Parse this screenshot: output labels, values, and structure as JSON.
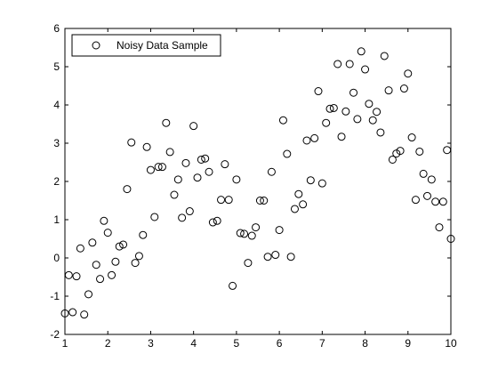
{
  "colors": {
    "background": "#ffffff",
    "axes": "#000000",
    "marker": "#000000"
  },
  "chart_data": {
    "type": "scatter",
    "title": "",
    "xlabel": "",
    "ylabel": "",
    "xlim": [
      1,
      10
    ],
    "ylim": [
      -2,
      6
    ],
    "xticks": [
      1,
      2,
      3,
      4,
      5,
      6,
      7,
      8,
      9,
      10
    ],
    "yticks": [
      -2,
      -1,
      0,
      1,
      2,
      3,
      4,
      5,
      6
    ],
    "grid": false,
    "box": true,
    "legend": {
      "placement": "top-left",
      "entries": [
        "Noisy Data Sample"
      ]
    },
    "series": [
      {
        "name": "Noisy Data Sample",
        "marker": "open-circle",
        "points": [
          [
            1.0,
            -1.45
          ],
          [
            1.09,
            -0.45
          ],
          [
            1.18,
            -1.42
          ],
          [
            1.27,
            -0.48
          ],
          [
            1.36,
            0.25
          ],
          [
            1.45,
            -1.48
          ],
          [
            1.55,
            -0.95
          ],
          [
            1.64,
            0.4
          ],
          [
            1.73,
            -0.18
          ],
          [
            1.82,
            -0.55
          ],
          [
            1.91,
            0.97
          ],
          [
            2.0,
            0.66
          ],
          [
            2.09,
            -0.45
          ],
          [
            2.18,
            -0.1
          ],
          [
            2.27,
            0.3
          ],
          [
            2.36,
            0.35
          ],
          [
            2.45,
            1.8
          ],
          [
            2.55,
            3.02
          ],
          [
            2.64,
            -0.13
          ],
          [
            2.73,
            0.05
          ],
          [
            2.82,
            0.6
          ],
          [
            2.91,
            2.9
          ],
          [
            3.0,
            2.3
          ],
          [
            3.09,
            1.07
          ],
          [
            3.18,
            2.38
          ],
          [
            3.27,
            2.38
          ],
          [
            3.36,
            3.53
          ],
          [
            3.45,
            2.77
          ],
          [
            3.55,
            1.65
          ],
          [
            3.64,
            2.05
          ],
          [
            3.73,
            1.05
          ],
          [
            3.82,
            2.48
          ],
          [
            3.91,
            1.22
          ],
          [
            4.0,
            3.45
          ],
          [
            4.09,
            2.1
          ],
          [
            4.18,
            2.57
          ],
          [
            4.27,
            2.6
          ],
          [
            4.36,
            2.25
          ],
          [
            4.45,
            0.93
          ],
          [
            4.55,
            0.97
          ],
          [
            4.64,
            1.52
          ],
          [
            4.73,
            2.45
          ],
          [
            4.82,
            1.52
          ],
          [
            4.91,
            -0.73
          ],
          [
            5.0,
            2.05
          ],
          [
            5.09,
            0.65
          ],
          [
            5.18,
            0.63
          ],
          [
            5.27,
            -0.13
          ],
          [
            5.36,
            0.58
          ],
          [
            5.45,
            0.8
          ],
          [
            5.55,
            1.5
          ],
          [
            5.64,
            1.5
          ],
          [
            5.73,
            0.03
          ],
          [
            5.82,
            2.25
          ],
          [
            5.91,
            0.08
          ],
          [
            6.0,
            0.73
          ],
          [
            6.09,
            3.6
          ],
          [
            6.18,
            2.72
          ],
          [
            6.27,
            0.03
          ],
          [
            6.36,
            1.28
          ],
          [
            6.45,
            1.67
          ],
          [
            6.55,
            1.4
          ],
          [
            6.64,
            3.07
          ],
          [
            6.73,
            2.03
          ],
          [
            6.82,
            3.13
          ],
          [
            6.91,
            4.36
          ],
          [
            7.0,
            1.95
          ],
          [
            7.09,
            3.53
          ],
          [
            7.18,
            3.9
          ],
          [
            7.27,
            3.92
          ],
          [
            7.36,
            5.07
          ],
          [
            7.45,
            3.17
          ],
          [
            7.55,
            3.83
          ],
          [
            7.64,
            5.07
          ],
          [
            7.73,
            4.32
          ],
          [
            7.82,
            3.63
          ],
          [
            7.91,
            5.4
          ],
          [
            8.0,
            4.93
          ],
          [
            8.09,
            4.03
          ],
          [
            8.18,
            3.6
          ],
          [
            8.27,
            3.82
          ],
          [
            8.36,
            3.28
          ],
          [
            8.45,
            5.28
          ],
          [
            8.55,
            4.38
          ],
          [
            8.64,
            2.57
          ],
          [
            8.73,
            2.73
          ],
          [
            8.82,
            2.8
          ],
          [
            8.91,
            4.43
          ],
          [
            9.0,
            4.82
          ],
          [
            9.09,
            3.15
          ],
          [
            9.18,
            1.52
          ],
          [
            9.27,
            2.78
          ],
          [
            9.36,
            2.2
          ],
          [
            9.45,
            1.62
          ],
          [
            9.55,
            2.05
          ],
          [
            9.64,
            1.47
          ],
          [
            9.73,
            0.8
          ],
          [
            9.82,
            1.47
          ],
          [
            9.91,
            2.82
          ],
          [
            10.0,
            0.5
          ]
        ]
      }
    ]
  }
}
